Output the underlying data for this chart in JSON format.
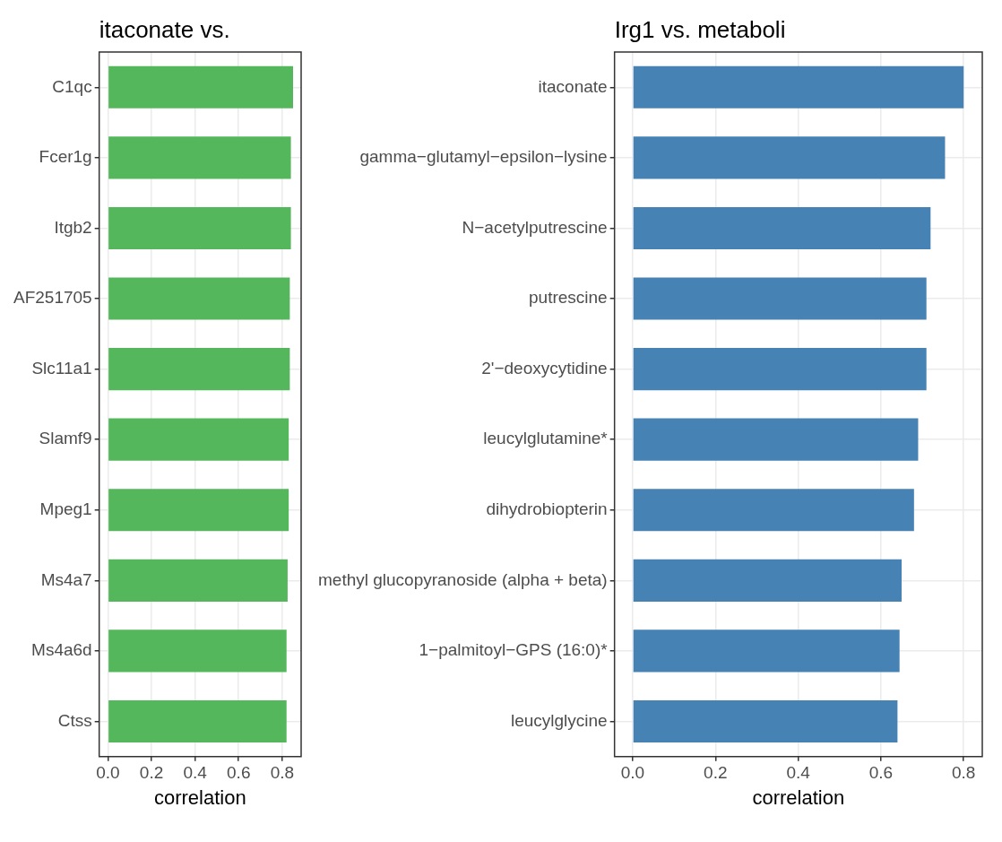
{
  "chart_data": [
    {
      "type": "bar",
      "orientation": "horizontal",
      "title": "itaconate vs.",
      "xlabel": "correlation",
      "categories": [
        "C1qc",
        "Fcer1g",
        "Itgb2",
        "AF251705",
        "Slc11a1",
        "Slamf9",
        "Mpeg1",
        "Ms4a7",
        "Ms4a6d",
        "Ctss"
      ],
      "values": [
        0.85,
        0.84,
        0.84,
        0.835,
        0.835,
        0.83,
        0.83,
        0.825,
        0.82,
        0.82
      ],
      "color": "#55b75c",
      "xlim": [
        -0.04,
        0.887
      ],
      "xticks": [
        {
          "value": 0,
          "label": "0.0"
        },
        0.2,
        0.4,
        0.6,
        0.8
      ],
      "grid": true,
      "legend": false
    },
    {
      "type": "bar",
      "orientation": "horizontal",
      "title": "Irg1 vs. metaboli",
      "xlabel": "correlation",
      "categories": [
        "itaconate",
        "gamma−glutamyl−epsilon−lysine",
        "N−acetylputrescine",
        "putrescine",
        "2'−deoxycytidine",
        "leucylglutamine*",
        "dihydrobiopterin",
        "methyl glucopyranoside (alpha + beta)",
        "1−palmitoyl−GPS (16:0)*",
        "leucylglycine"
      ],
      "values": [
        0.8,
        0.755,
        0.72,
        0.71,
        0.71,
        0.69,
        0.68,
        0.65,
        0.645,
        0.64
      ],
      "color": "#4682b4",
      "xlim": [
        -0.044,
        0.845
      ],
      "xticks": [
        {
          "value": 0,
          "label": "0.0"
        },
        0.2,
        0.4,
        0.6,
        0.8
      ],
      "grid": true,
      "legend": false
    }
  ]
}
